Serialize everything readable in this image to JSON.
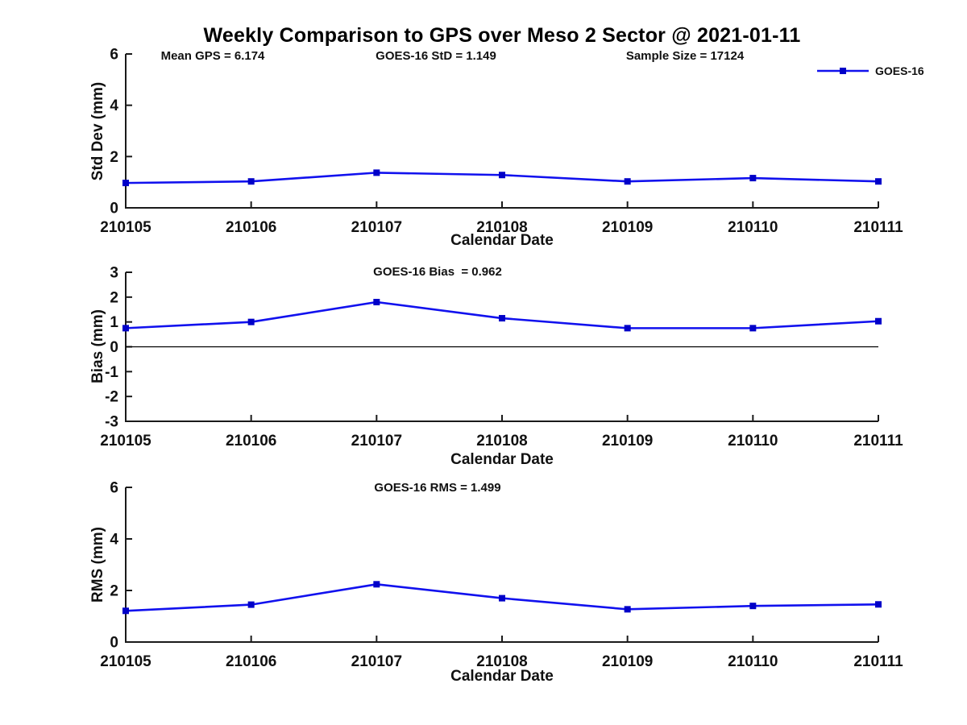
{
  "figure": {
    "title": "Weekly Comparison to GPS over Meso 2 Sector @ 2021-01-11",
    "background": "#ffffff",
    "axis_color": "#1a1a1a",
    "line_color": "#1111ee",
    "marker_color": "#0000c8"
  },
  "chart_data": [
    {
      "type": "line",
      "title": "",
      "ylabel": "Std Dev (mm)",
      "xlabel": "Calendar Date",
      "categories": [
        "210105",
        "210106",
        "210107",
        "210108",
        "210109",
        "210110",
        "210111"
      ],
      "series": [
        {
          "name": "GOES-16",
          "values": [
            0.97,
            1.03,
            1.37,
            1.28,
            1.03,
            1.16,
            1.03
          ]
        }
      ],
      "ylim": [
        0,
        6
      ],
      "yticks": [
        0,
        2,
        4,
        6
      ],
      "zero_line": false,
      "grid": "off",
      "legend_position": "top-right-outside",
      "stats": [
        "Mean GPS = 6.174",
        "GOES-16 StD = 1.149",
        "Sample Size = 17124"
      ]
    },
    {
      "type": "line",
      "title": "GOES-16 Bias  = 0.962",
      "ylabel": "Bias (mm)",
      "xlabel": "Calendar Date",
      "categories": [
        "210105",
        "210106",
        "210107",
        "210108",
        "210109",
        "210110",
        "210111"
      ],
      "series": [
        {
          "name": "GOES-16",
          "values": [
            0.75,
            1.0,
            1.8,
            1.15,
            0.75,
            0.75,
            1.03
          ]
        }
      ],
      "ylim": [
        -3,
        3
      ],
      "yticks": [
        -3,
        -2,
        -1,
        0,
        1,
        2,
        3
      ],
      "zero_line": true,
      "grid": "off"
    },
    {
      "type": "line",
      "title": "GOES-16 RMS = 1.499",
      "ylabel": "RMS (mm)",
      "xlabel": "Calendar Date",
      "categories": [
        "210105",
        "210106",
        "210107",
        "210108",
        "210109",
        "210110",
        "210111"
      ],
      "series": [
        {
          "name": "GOES-16",
          "values": [
            1.21,
            1.45,
            2.24,
            1.7,
            1.27,
            1.4,
            1.46
          ]
        }
      ],
      "ylim": [
        0,
        6
      ],
      "yticks": [
        0,
        2,
        4,
        6
      ],
      "zero_line": false,
      "grid": "off"
    }
  ]
}
